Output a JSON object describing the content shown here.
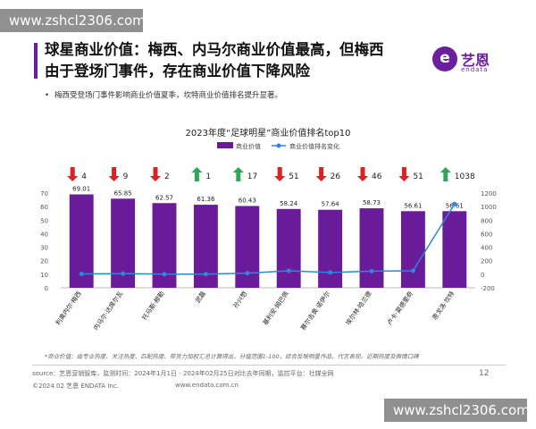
{
  "watermark": "www.zshcl2306.com",
  "header": {
    "title_line1": "球星商业价值：梅西、内马尔商业价值最高，但梅西",
    "title_line2": "由于登场门事件，存在商业价值下降风险",
    "logo_char": "e",
    "logo_name": "艺恩",
    "logo_sub": "endata"
  },
  "bullet": "梅西受登场门事件影响商业价值夏季，坎特商业价值排名提升显著。",
  "chart_data": {
    "type": "bar",
    "title": "2023年度“足球明星”商业价值排名top10",
    "categories": [
      "利奥内尔·梅西",
      "内马尔·达席尔瓦",
      "托马斯·穆勒",
      "武磊",
      "孙兴慜",
      "基利安·姆巴佩",
      "赛尔吉奥·诺伊尔",
      "埃尔林·哈兰德",
      "卢卡·莫德里奇",
      "恩戈洛·坎特"
    ],
    "series": [
      {
        "name": "商业价值",
        "axis": "left",
        "values": [
          69.01,
          65.85,
          62.57,
          61.36,
          60.43,
          58.24,
          57.64,
          58.73,
          56.61,
          56.61
        ],
        "color": "#6a1b9a"
      },
      {
        "name": "商业价值排名变化",
        "axis": "right",
        "values": [
          4,
          9,
          2,
          1,
          17,
          51,
          26,
          46,
          51,
          1038
        ],
        "color": "#2e86de"
      }
    ],
    "rank_change_arrows": [
      "down",
      "down",
      "down",
      "up",
      "up",
      "down",
      "down",
      "down",
      "down",
      "up"
    ],
    "arrow_colors": {
      "down": "#e02020",
      "up": "#2ea55a"
    },
    "ylim_left": [
      0,
      70
    ],
    "yticks_left": [
      0,
      10,
      20,
      30,
      40,
      50,
      60,
      70
    ],
    "ylim_right": [
      -200,
      1200
    ],
    "yticks_right": [
      -200,
      0,
      200,
      400,
      600,
      800,
      1000,
      1200
    ],
    "legend_position": "top-center",
    "grid": false
  },
  "note": "*商业价值：由专业热度、关注热度、匹配热度、带货力加权汇总计算得出，分值范围1-100，综合反映明星作品、代言表现、近期热度及舆情口碑",
  "footer": {
    "source": "source：艺恩营销智库，监测时间：2024年1月1日 - 2024年02月25日对比去年同期，监控平台：社媒全网",
    "copyright": "©2024.02 艺恩 ENDATA Inc.",
    "website": "www.endata.com.cn",
    "page": "12"
  }
}
